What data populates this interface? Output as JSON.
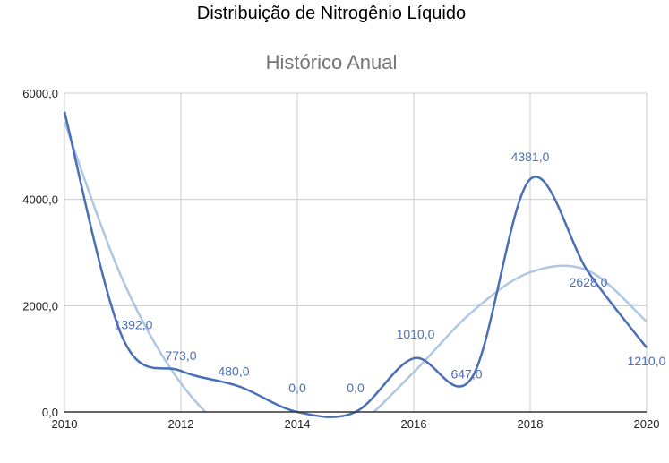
{
  "page_title": "Distribuição de Nitrogênio Líquido",
  "chart_data": {
    "type": "line",
    "title": "Histórico Anual",
    "xlabel": "",
    "ylabel": "",
    "x": [
      2010,
      2011,
      2012,
      2013,
      2014,
      2015,
      2016,
      2017,
      2018,
      2019,
      2020
    ],
    "series": [
      {
        "values": [
          5650,
          1392,
          773,
          480,
          0,
          0,
          1010,
          647,
          4381,
          2628,
          1210
        ],
        "color": "#4a6fb5",
        "data_labels": [
          "",
          "1392,0",
          "773,0",
          "480,0",
          "0,0",
          "0,0",
          "1010,0",
          "647,0",
          "4381,0",
          "2628,0",
          "1210,0"
        ]
      }
    ],
    "trendline": {
      "type": "polynomial",
      "color": "#b0c7e3",
      "values": [
        5460,
        2485,
        541,
        -495,
        -725,
        -275,
        749,
        1883,
        2627,
        2658,
        1700
      ]
    },
    "xlim": [
      2010,
      2020
    ],
    "ylim": [
      0,
      6000
    ],
    "x_ticks": [
      "2010",
      "2012",
      "2014",
      "2016",
      "2018",
      "2020"
    ],
    "y_ticks": [
      "0,0",
      "2000,0",
      "4000,0",
      "6000,0"
    ],
    "grid": true,
    "legend": "none"
  }
}
